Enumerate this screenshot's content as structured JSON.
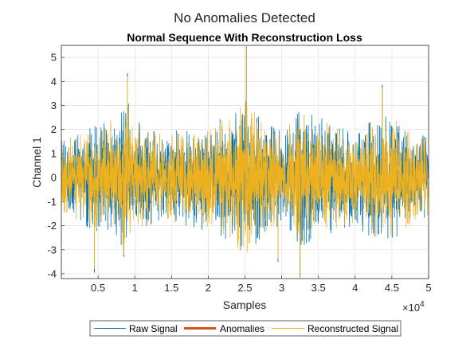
{
  "figure": {
    "sgtitle": "No Anomalies Detected"
  },
  "chart_data": {
    "type": "line",
    "title": "Normal Sequence With Reconstruction Loss",
    "xlabel": "Samples",
    "ylabel": "Channel 1",
    "xlim": [
      0,
      50000
    ],
    "ylim": [
      -4.2,
      5.5
    ],
    "x_exponent_label": "×10^4",
    "x_exponent_base": "×10",
    "x_exponent_power": "4",
    "xticks": [
      5000,
      10000,
      15000,
      20000,
      25000,
      30000,
      35000,
      40000,
      45000,
      50000
    ],
    "xtick_labels": [
      "0.5",
      "1",
      "1.5",
      "2",
      "2.5",
      "3",
      "3.5",
      "4",
      "4.5",
      "5"
    ],
    "yticks": [
      -4,
      -3,
      -2,
      -1,
      0,
      1,
      2,
      3,
      4,
      5
    ],
    "ytick_labels": [
      "-4",
      "-3",
      "-2",
      "-1",
      "0",
      "1",
      "2",
      "3",
      "4",
      "5"
    ],
    "grid": true,
    "legend_position": "bottom-outside",
    "series": [
      {
        "name": "Raw Signal",
        "color": "#0072BD",
        "amplitude_envelope_x": [
          0,
          2500,
          5000,
          7500,
          9000,
          10000,
          12500,
          15000,
          17500,
          20000,
          22500,
          25000,
          27500,
          30000,
          32500,
          35000,
          37500,
          40000,
          42500,
          45000,
          47500,
          50000
        ],
        "amplitude_envelope": [
          1.6,
          2.0,
          2.3,
          2.6,
          3.6,
          2.6,
          2.2,
          2.0,
          2.0,
          2.3,
          2.6,
          3.4,
          2.6,
          2.0,
          3.2,
          2.6,
          2.2,
          2.0,
          2.6,
          2.7,
          2.2,
          1.7
        ],
        "peaks": [
          {
            "x": 9000,
            "y": 4.35
          },
          {
            "x": 25200,
            "y": 5.45
          },
          {
            "x": 8500,
            "y": -3.3
          },
          {
            "x": 32500,
            "y": -4.15
          },
          {
            "x": 4500,
            "y": -3.95
          },
          {
            "x": 43700,
            "y": 3.85
          },
          {
            "x": 29500,
            "y": -3.5
          }
        ]
      },
      {
        "name": "Anomalies",
        "color": "#D95319",
        "x": [],
        "y": []
      },
      {
        "name": "Reconstructed Signal",
        "color": "#EDB120",
        "amplitude_envelope_x": [
          0,
          2500,
          5000,
          7500,
          9000,
          10000,
          12500,
          15000,
          17500,
          20000,
          22500,
          25000,
          27500,
          30000,
          32500,
          35000,
          37500,
          40000,
          42500,
          45000,
          47500,
          50000
        ],
        "amplitude_envelope": [
          1.5,
          1.9,
          2.2,
          2.5,
          3.5,
          2.5,
          2.1,
          1.9,
          1.9,
          2.2,
          2.5,
          3.3,
          2.5,
          1.9,
          3.1,
          2.5,
          2.1,
          1.9,
          2.5,
          2.6,
          2.1,
          1.6
        ],
        "peaks": [
          {
            "x": 9000,
            "y": 4.2
          },
          {
            "x": 25200,
            "y": 5.4
          },
          {
            "x": 8500,
            "y": -3.2
          },
          {
            "x": 32500,
            "y": -4.1
          },
          {
            "x": 4500,
            "y": -3.8
          },
          {
            "x": 43700,
            "y": 3.75
          },
          {
            "x": 29500,
            "y": -3.4
          }
        ]
      }
    ]
  }
}
